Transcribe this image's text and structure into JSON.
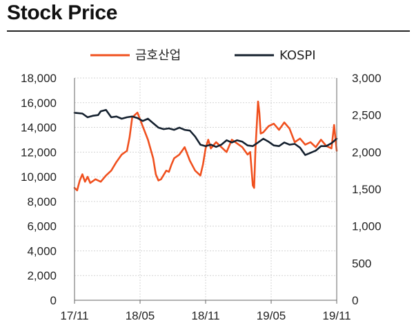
{
  "header": {
    "title": "Stock Price"
  },
  "chart_data": {
    "type": "line",
    "title": "Stock Price",
    "x_ticks": [
      "17/11",
      "18/05",
      "18/11",
      "19/05",
      "19/11"
    ],
    "x_range": [
      "2017-11",
      "2019-11"
    ],
    "y_left": {
      "ticks": [
        "0",
        "2,000",
        "4,000",
        "6,000",
        "8,000",
        "10,000",
        "12,000",
        "14,000",
        "16,000",
        "18,000"
      ],
      "range": [
        0,
        18000
      ]
    },
    "y_right": {
      "ticks": [
        "0",
        "500",
        "1,000",
        "1,500",
        "2,000",
        "2,500",
        "3,000"
      ],
      "range": [
        0,
        3000
      ]
    },
    "grid": true,
    "legend_position": "top-center",
    "series": [
      {
        "name": "금호산업",
        "axis": "left",
        "color": "#f0501e",
        "x": [
          0.0,
          0.01,
          0.02,
          0.03,
          0.04,
          0.05,
          0.06,
          0.08,
          0.1,
          0.12,
          0.14,
          0.16,
          0.18,
          0.2,
          0.21,
          0.22,
          0.24,
          0.26,
          0.28,
          0.3,
          0.31,
          0.32,
          0.33,
          0.35,
          0.36,
          0.37,
          0.38,
          0.4,
          0.42,
          0.44,
          0.46,
          0.48,
          0.49,
          0.5,
          0.51,
          0.52,
          0.54,
          0.56,
          0.58,
          0.6,
          0.62,
          0.64,
          0.66,
          0.67,
          0.68,
          0.685,
          0.69,
          0.7,
          0.705,
          0.71,
          0.72,
          0.74,
          0.76,
          0.78,
          0.8,
          0.82,
          0.84,
          0.86,
          0.88,
          0.9,
          0.92,
          0.94,
          0.96,
          0.98,
          0.99,
          1.0
        ],
        "values": [
          9100,
          8900,
          9700,
          10200,
          9600,
          10000,
          9500,
          9800,
          9600,
          10100,
          10500,
          11200,
          11800,
          12100,
          13200,
          14800,
          15200,
          14100,
          13000,
          11500,
          10200,
          9700,
          9800,
          10500,
          10400,
          11000,
          11500,
          11800,
          12400,
          11300,
          10500,
          10100,
          11000,
          12300,
          13000,
          12300,
          12800,
          12400,
          12000,
          13000,
          12700,
          12400,
          11800,
          12000,
          9300,
          9100,
          12200,
          16100,
          15200,
          13500,
          13600,
          14100,
          14300,
          13800,
          14400,
          13900,
          12800,
          13100,
          12600,
          12800,
          12400,
          13000,
          12500,
          12300,
          14200,
          12100
        ],
        "label_values": [
          9100,
          8900,
          9700,
          10200,
          9600,
          10000,
          9500,
          9800,
          9600,
          10100,
          10500,
          11200,
          11800,
          12100,
          13200,
          14800,
          15200,
          14100,
          13000,
          11500,
          10200,
          9700,
          9800,
          10500,
          10400,
          11000,
          11500,
          11800,
          12400,
          11300,
          10500,
          10100,
          11000,
          12300,
          13000,
          12300,
          12800,
          12400,
          12000,
          13000,
          12700,
          12400,
          11800,
          12000,
          9300,
          9100,
          12200,
          16100,
          15200,
          13500,
          13600,
          14100,
          14300,
          13800,
          14400,
          13900,
          12800,
          13100,
          12600,
          12800,
          12400,
          13000,
          12500,
          12300,
          14200,
          12100
        ]
      },
      {
        "name": "KOSPI",
        "axis": "right",
        "color": "#14202e",
        "x": [
          0.0,
          0.03,
          0.05,
          0.07,
          0.09,
          0.1,
          0.12,
          0.14,
          0.16,
          0.18,
          0.2,
          0.22,
          0.24,
          0.26,
          0.28,
          0.3,
          0.32,
          0.34,
          0.36,
          0.38,
          0.4,
          0.42,
          0.44,
          0.46,
          0.48,
          0.5,
          0.52,
          0.54,
          0.56,
          0.58,
          0.6,
          0.62,
          0.64,
          0.66,
          0.68,
          0.7,
          0.72,
          0.74,
          0.76,
          0.78,
          0.8,
          0.82,
          0.84,
          0.86,
          0.88,
          0.9,
          0.92,
          0.94,
          0.96,
          0.98,
          1.0
        ],
        "values": [
          2530,
          2520,
          2470,
          2490,
          2500,
          2550,
          2570,
          2470,
          2480,
          2450,
          2470,
          2480,
          2460,
          2420,
          2450,
          2390,
          2330,
          2310,
          2320,
          2300,
          2330,
          2300,
          2290,
          2210,
          2100,
          2080,
          2100,
          2070,
          2100,
          2160,
          2130,
          2160,
          2140,
          2090,
          2080,
          2130,
          2180,
          2140,
          2090,
          2080,
          2130,
          2100,
          2110,
          2060,
          1960,
          1990,
          2020,
          2080,
          2080,
          2120,
          2180
        ],
        "label_values": [
          2530,
          2520,
          2470,
          2490,
          2500,
          2550,
          2570,
          2470,
          2480,
          2450,
          2470,
          2480,
          2460,
          2420,
          2450,
          2390,
          2330,
          2310,
          2320,
          2300,
          2330,
          2300,
          2290,
          2210,
          2100,
          2080,
          2100,
          2070,
          2100,
          2160,
          2130,
          2160,
          2140,
          2090,
          2080,
          2130,
          2180,
          2140,
          2090,
          2080,
          2130,
          2100,
          2110,
          2060,
          1960,
          1990,
          2020,
          2080,
          2080,
          2120,
          2180
        ]
      }
    ]
  }
}
